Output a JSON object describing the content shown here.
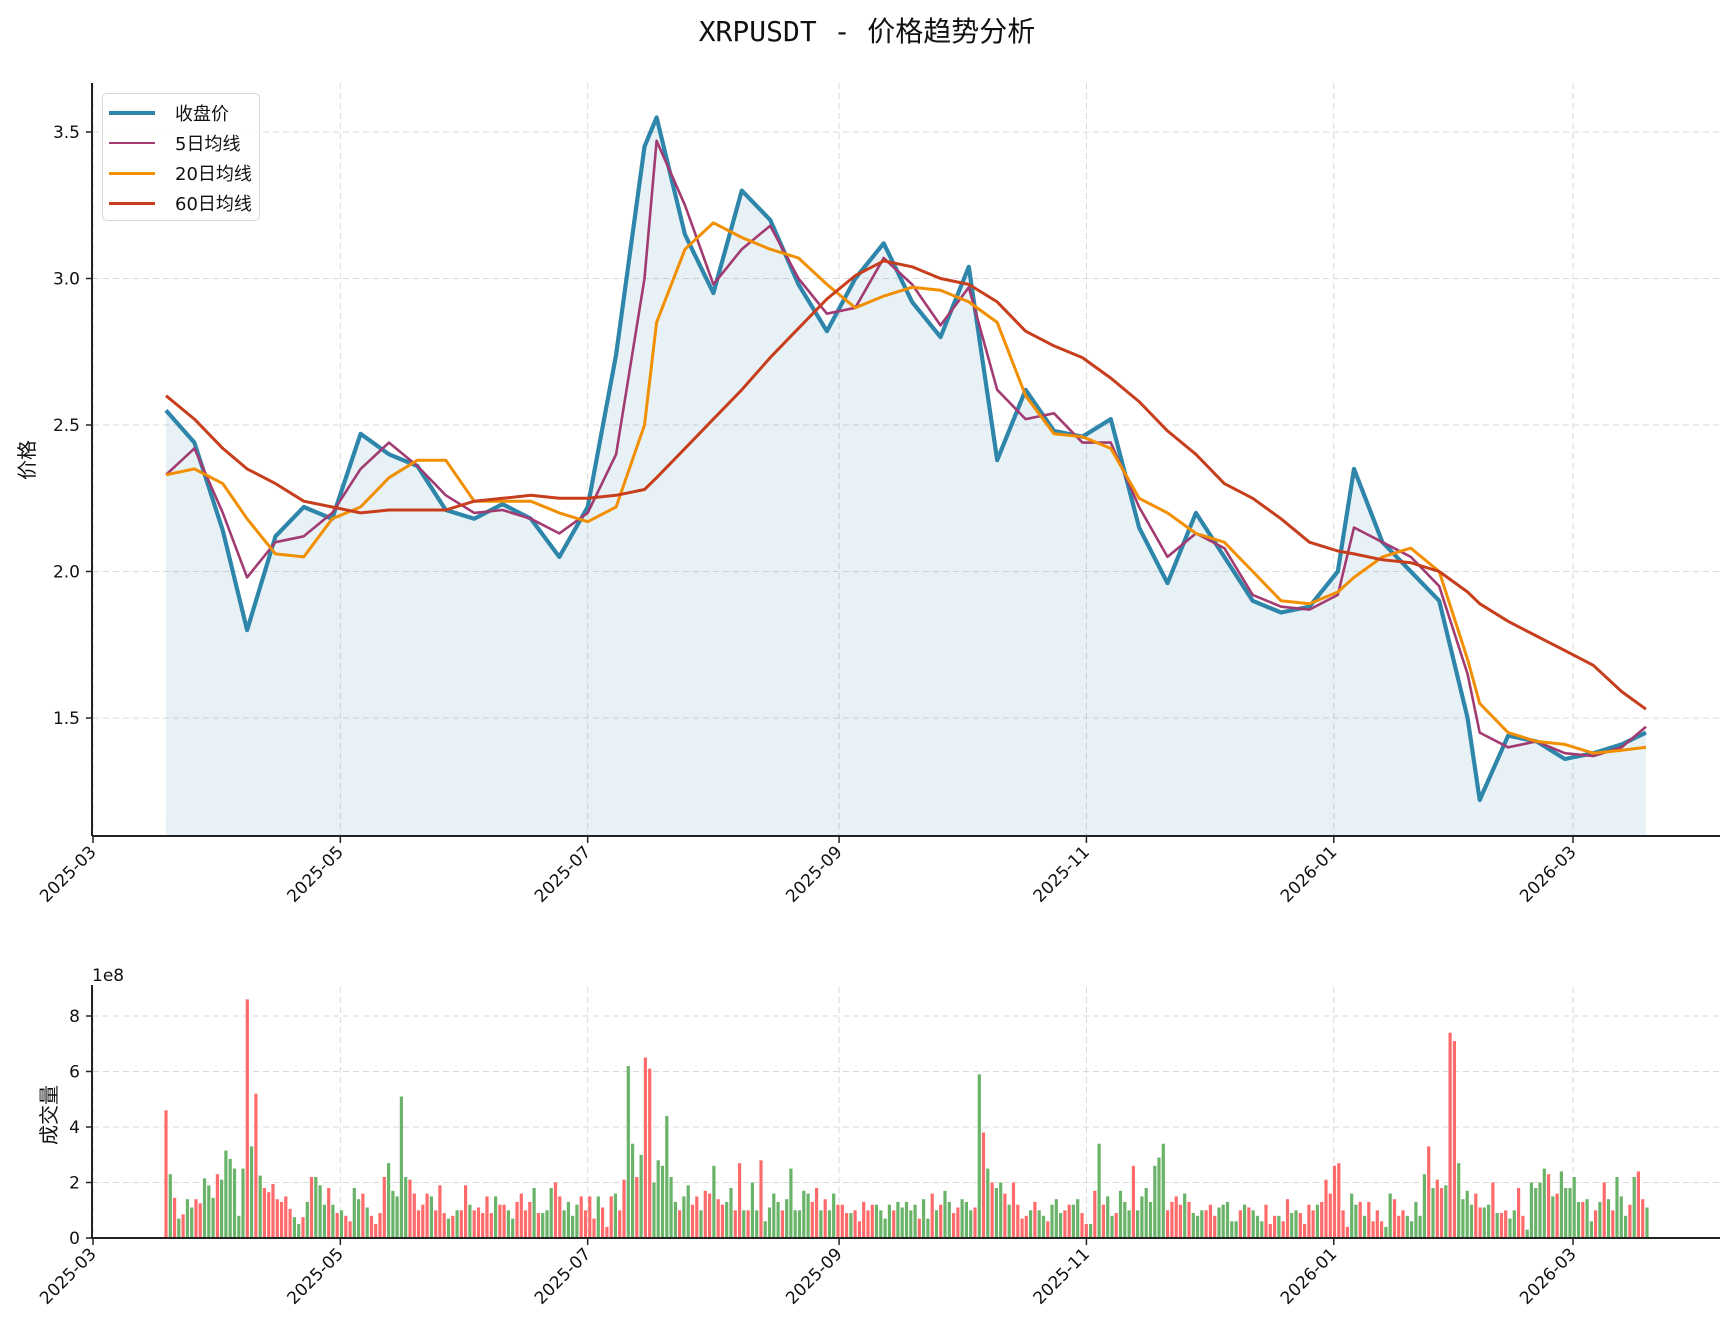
{
  "title": "XRPUSDT - 价格趋势分析",
  "legend": [
    {
      "label": "收盘价",
      "color": "#2e86ab",
      "width": 4
    },
    {
      "label": "5日均线",
      "color": "#a23b72",
      "width": 2.5
    },
    {
      "label": "20日均线",
      "color": "#f18f01",
      "width": 3
    },
    {
      "label": "60日均线",
      "color": "#c73e1d",
      "width": 3
    }
  ],
  "price_panel": {
    "ylabel": "价格",
    "yticks": [
      "1.5",
      "2.0",
      "2.5",
      "3.0",
      "3.5"
    ],
    "xticks": [
      "2025-03",
      "2025-05",
      "2025-07",
      "2025-09",
      "2025-11",
      "2026-01",
      "2026-03"
    ]
  },
  "volume_panel": {
    "ylabel": "成交量",
    "offset_label": "1e8",
    "yticks": [
      "0",
      "2",
      "4",
      "6",
      "8"
    ],
    "xticks": [
      "2025-03",
      "2025-05",
      "2025-07",
      "2025-09",
      "2025-11",
      "2026-01",
      "2026-03"
    ],
    "up_color": "#ff6b6b",
    "down_color": "#6ab46a"
  },
  "chart_data": [
    {
      "type": "line",
      "title": "XRPUSDT - 价格趋势分析",
      "xlabel": "",
      "ylabel": "价格",
      "ylim": [
        1.1,
        3.67
      ],
      "x_range": [
        "2025-03-19",
        "2026-03-19"
      ],
      "grid": true,
      "legend_position": "upper left",
      "x": [
        "2025-03-19",
        "2025-03-26",
        "2025-04-02",
        "2025-04-08",
        "2025-04-15",
        "2025-04-22",
        "2025-04-29",
        "2025-05-06",
        "2025-05-13",
        "2025-05-20",
        "2025-05-27",
        "2025-06-03",
        "2025-06-10",
        "2025-06-17",
        "2025-06-24",
        "2025-07-01",
        "2025-07-08",
        "2025-07-15",
        "2025-07-18",
        "2025-07-25",
        "2025-08-01",
        "2025-08-08",
        "2025-08-15",
        "2025-08-22",
        "2025-08-29",
        "2025-09-05",
        "2025-09-12",
        "2025-09-19",
        "2025-09-26",
        "2025-10-03",
        "2025-10-10",
        "2025-10-17",
        "2025-10-24",
        "2025-10-31",
        "2025-11-07",
        "2025-11-14",
        "2025-11-21",
        "2025-11-28",
        "2025-12-05",
        "2025-12-12",
        "2025-12-19",
        "2025-12-26",
        "2026-01-02",
        "2026-01-06",
        "2026-01-13",
        "2026-01-20",
        "2026-01-27",
        "2026-02-03",
        "2026-02-06",
        "2026-02-13",
        "2026-02-20",
        "2026-02-27",
        "2026-03-06",
        "2026-03-13",
        "2026-03-19"
      ],
      "series": [
        {
          "name": "收盘价",
          "values": [
            2.55,
            2.44,
            2.14,
            1.8,
            2.12,
            2.22,
            2.18,
            2.47,
            2.4,
            2.36,
            2.21,
            2.18,
            2.23,
            2.18,
            2.05,
            2.22,
            2.74,
            3.45,
            3.55,
            3.15,
            2.95,
            3.3,
            3.2,
            2.98,
            2.82,
            3.0,
            3.12,
            2.92,
            2.8,
            3.04,
            2.38,
            2.62,
            2.48,
            2.46,
            2.52,
            2.15,
            1.96,
            2.2,
            2.05,
            1.9,
            1.86,
            1.88,
            2.0,
            2.35,
            2.1,
            2.0,
            1.9,
            1.5,
            1.22,
            1.44,
            1.42,
            1.36,
            1.38,
            1.41,
            1.45
          ]
        },
        {
          "name": "5日均线",
          "values": [
            2.33,
            2.42,
            2.2,
            1.98,
            2.1,
            2.12,
            2.2,
            2.35,
            2.44,
            2.36,
            2.26,
            2.2,
            2.21,
            2.18,
            2.13,
            2.2,
            2.4,
            3.0,
            3.47,
            3.25,
            2.98,
            3.1,
            3.18,
            3.0,
            2.88,
            2.9,
            3.07,
            2.98,
            2.84,
            2.97,
            2.62,
            2.52,
            2.54,
            2.44,
            2.44,
            2.22,
            2.05,
            2.13,
            2.08,
            1.92,
            1.88,
            1.87,
            1.92,
            2.15,
            2.1,
            2.05,
            1.95,
            1.65,
            1.45,
            1.4,
            1.42,
            1.38,
            1.37,
            1.4,
            1.47
          ]
        },
        {
          "name": "20日均线",
          "values": [
            2.33,
            2.35,
            2.3,
            2.18,
            2.06,
            2.05,
            2.18,
            2.22,
            2.32,
            2.38,
            2.38,
            2.24,
            2.24,
            2.24,
            2.2,
            2.17,
            2.22,
            2.5,
            2.85,
            3.1,
            3.19,
            3.14,
            3.1,
            3.07,
            2.98,
            2.9,
            2.94,
            2.97,
            2.96,
            2.92,
            2.85,
            2.6,
            2.47,
            2.46,
            2.42,
            2.25,
            2.2,
            2.13,
            2.1,
            2.0,
            1.9,
            1.89,
            1.93,
            1.98,
            2.05,
            2.08,
            2.0,
            1.7,
            1.55,
            1.45,
            1.42,
            1.41,
            1.38,
            1.39,
            1.4
          ]
        },
        {
          "name": "60日均线",
          "values": [
            2.6,
            2.52,
            2.42,
            2.35,
            2.3,
            2.24,
            2.22,
            2.2,
            2.21,
            2.21,
            2.21,
            2.24,
            2.25,
            2.26,
            2.25,
            2.25,
            2.26,
            2.28,
            2.32,
            2.42,
            2.52,
            2.62,
            2.73,
            2.83,
            2.93,
            3.01,
            3.06,
            3.04,
            3.0,
            2.98,
            2.92,
            2.82,
            2.77,
            2.73,
            2.66,
            2.58,
            2.48,
            2.4,
            2.3,
            2.25,
            2.18,
            2.1,
            2.07,
            2.06,
            2.04,
            2.03,
            2.0,
            1.93,
            1.89,
            1.83,
            1.78,
            1.73,
            1.68,
            1.59,
            1.53
          ]
        }
      ]
    },
    {
      "type": "bar",
      "title": "",
      "xlabel": "",
      "ylabel": "成交量",
      "ylim": [
        0,
        900000000.0
      ],
      "y_scale_label": "1e8",
      "grid": true,
      "x_range": [
        "2025-03-19",
        "2026-03-19"
      ],
      "series": [
        {
          "name": "成交量(1e8)",
          "values": [
            4.6,
            2.3,
            1.45,
            0.7,
            0.85,
            1.4,
            1.1,
            1.4,
            1.25,
            2.15,
            1.9,
            1.45,
            2.3,
            2.1,
            3.15,
            2.85,
            2.5,
            0.8,
            2.5,
            8.6,
            3.3,
            5.2,
            2.25,
            1.8,
            1.65,
            1.95,
            1.4,
            1.3,
            1.5,
            1.05,
            0.75,
            0.5,
            0.75,
            1.3,
            2.2,
            2.2,
            1.9,
            1.2,
            1.8,
            1.2,
            0.9,
            1.0,
            0.8,
            0.6,
            1.8,
            1.4,
            1.6,
            1.1,
            0.8,
            0.5,
            0.9,
            2.2,
            2.7,
            1.7,
            1.5,
            5.1,
            2.2,
            2.1,
            1.6,
            1.0,
            1.2,
            1.6,
            1.5,
            1.0,
            1.9,
            0.9,
            0.7,
            0.8,
            1.0,
            1.0,
            1.9,
            1.2,
            1.0,
            1.1,
            0.9,
            1.5,
            0.9,
            1.5,
            1.2,
            1.2,
            1.0,
            0.7,
            1.3,
            1.6,
            1.0,
            1.3,
            1.8,
            0.9,
            0.9,
            1.0,
            1.8,
            2.0,
            1.5,
            1.0,
            1.3,
            0.8,
            1.2,
            1.5,
            1.0,
            1.5,
            0.7,
            1.5,
            1.1,
            0.4,
            1.5,
            1.6,
            1.0,
            2.1,
            6.2,
            3.4,
            2.2,
            3.0,
            6.5,
            6.1,
            2.0,
            2.8,
            2.6,
            4.4,
            2.2,
            1.3,
            1.0,
            1.5,
            1.9,
            1.2,
            1.5,
            1.0,
            1.7,
            1.6,
            2.6,
            1.4,
            1.2,
            1.3,
            1.8,
            1.0,
            2.7,
            1.0,
            1.0,
            2.0,
            1.0,
            2.8,
            0.6,
            1.1,
            1.6,
            1.3,
            1.0,
            1.4,
            2.5,
            1.0,
            1.0,
            1.7,
            1.6,
            1.3,
            1.8,
            1.0,
            1.4,
            1.0,
            1.6,
            1.2,
            1.2,
            0.9,
            0.9,
            1.0,
            0.6,
            1.3,
            1.0,
            1.2,
            1.2,
            1.0,
            0.7,
            1.2,
            1.0,
            1.3,
            1.1,
            1.3,
            1.0,
            1.2,
            0.7,
            1.4,
            0.7,
            1.6,
            1.0,
            1.2,
            1.7,
            1.3,
            0.9,
            1.1,
            1.4,
            1.3,
            1.0,
            1.1,
            5.9,
            3.8,
            2.5,
            2.0,
            1.8,
            2.0,
            1.6,
            1.2,
            2.0,
            1.2,
            0.7,
            0.8,
            1.0,
            1.3,
            1.0,
            0.8,
            0.6,
            1.2,
            1.4,
            0.9,
            1.0,
            1.2,
            1.2,
            1.4,
            0.9,
            0.5,
            0.5,
            1.7,
            3.4,
            1.2,
            1.5,
            0.8,
            0.9,
            1.7,
            1.3,
            1.0,
            2.6,
            1.0,
            1.5,
            1.8,
            1.3,
            2.6,
            2.9,
            3.4,
            1.0,
            1.3,
            1.5,
            1.2,
            1.6,
            1.3,
            0.9,
            0.8,
            1.0,
            1.0,
            1.2,
            0.8,
            1.1,
            1.2,
            1.3,
            0.6,
            0.6,
            1.0,
            1.2,
            1.1,
            1.0,
            0.8,
            0.6,
            1.2,
            0.5,
            0.8,
            0.8,
            0.6,
            1.4,
            0.9,
            1.0,
            0.9,
            0.5,
            1.2,
            1.0,
            1.2,
            1.3,
            2.1,
            1.6,
            2.6,
            2.7,
            1.0,
            0.4,
            1.6,
            1.2,
            1.3,
            0.8,
            1.3,
            0.6,
            1.0,
            0.6,
            0.4,
            1.6,
            1.4,
            0.8,
            1.0,
            0.8,
            0.6,
            1.3,
            0.8,
            2.3,
            3.3,
            1.8,
            2.1,
            1.8,
            1.9,
            7.4,
            7.1,
            2.7,
            1.4,
            1.7,
            1.2,
            1.6,
            1.1,
            1.1,
            1.2,
            2.0,
            0.9,
            0.9,
            1.0,
            0.7,
            1.0,
            1.8,
            0.8,
            0.3,
            2.0,
            1.8,
            2.0,
            2.5,
            2.3,
            1.5,
            1.6,
            2.4,
            1.8,
            1.8,
            2.2,
            1.3,
            1.3,
            1.4,
            0.6,
            1.0,
            1.3,
            2.0,
            1.4,
            1.0,
            2.2,
            1.5,
            0.8,
            1.2,
            2.2,
            2.4,
            1.4,
            1.1
          ]
        }
      ]
    }
  ]
}
